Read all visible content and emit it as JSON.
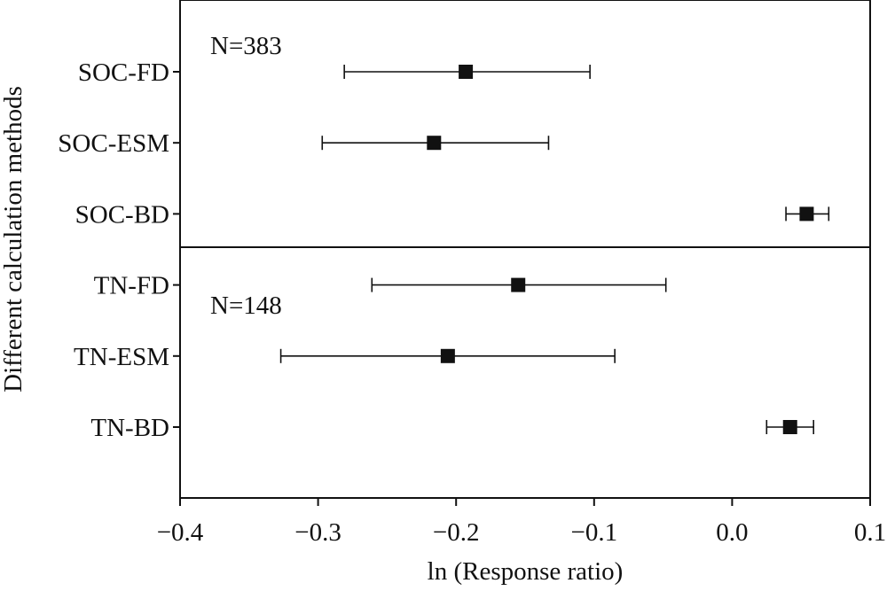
{
  "chart_data": {
    "type": "scatter",
    "subtype": "forest-plot",
    "title": "",
    "xlabel": "ln (Response ratio)",
    "ylabel": "Different calculation methods",
    "xlim": [
      -0.4,
      0.1
    ],
    "xticks": [
      -0.4,
      -0.3,
      -0.2,
      -0.1,
      0.0,
      0.1
    ],
    "xtick_labels": [
      "−0.4",
      "−0.3",
      "−0.2",
      "−0.1",
      "0.0",
      "0.1"
    ],
    "grid": false,
    "legend": "none",
    "marker": "square",
    "marker_color": "#111111",
    "categories": [
      "SOC-FD",
      "SOC-ESM",
      "SOC-BD",
      "TN-FD",
      "TN-ESM",
      "TN-BD"
    ],
    "values": [
      -0.193,
      -0.216,
      0.054,
      -0.155,
      -0.206,
      0.042
    ],
    "ci_low": [
      -0.281,
      -0.297,
      0.039,
      -0.261,
      -0.327,
      0.025
    ],
    "ci_high": [
      -0.103,
      -0.133,
      0.07,
      -0.048,
      -0.085,
      0.059
    ],
    "panels": [
      {
        "annotation": "N=383",
        "categories": [
          "SOC-FD",
          "SOC-ESM",
          "SOC-BD"
        ]
      },
      {
        "annotation": "N=148",
        "categories": [
          "TN-FD",
          "TN-ESM",
          "TN-BD"
        ]
      }
    ]
  }
}
